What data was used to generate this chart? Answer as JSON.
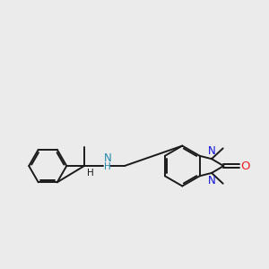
{
  "bg_color": "#ebebeb",
  "bond_color": "#1a1a1a",
  "N_color": "#1010dd",
  "NH_color": "#2288aa",
  "O_color": "#ee2020",
  "font_size": 8.5,
  "lw": 1.4,
  "xlim": [
    -1.0,
    9.5
  ],
  "ylim": [
    -1.5,
    4.0
  ],
  "figsize": [
    3.0,
    3.0
  ],
  "dpi": 100
}
